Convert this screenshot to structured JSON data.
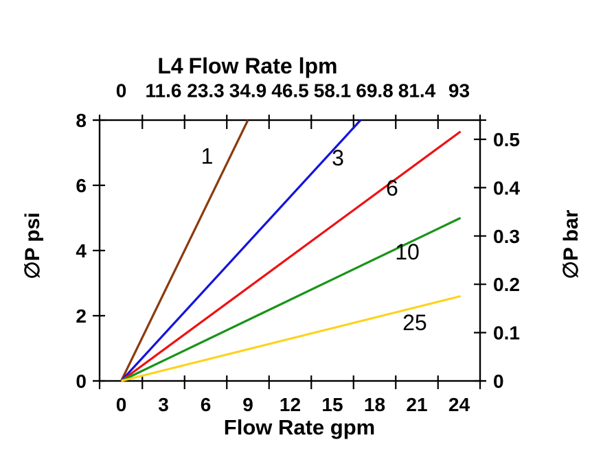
{
  "chart_data": {
    "type": "line",
    "title_prefix": "L4",
    "title_main": "Flow Rate lpm",
    "xlabel_bottom": "Flow Rate gpm",
    "ylabel_left": "∅P psi",
    "ylabel_right": "∅P bar",
    "background": "#ffffff",
    "axis_color": "#000000",
    "x_axis_bottom": {
      "unit": "gpm",
      "tick_labels": [
        "0",
        "3",
        "6",
        "9",
        "12",
        "15",
        "18",
        "21",
        "24"
      ],
      "tick_values": [
        0,
        3,
        6,
        9,
        12,
        15,
        18,
        21,
        24
      ],
      "minor_tick_values": [
        1.5,
        4.5,
        7.5,
        10.5,
        13.5,
        16.5,
        19.5,
        22.5
      ],
      "range": [
        -1.54,
        25.49
      ]
    },
    "x_axis_top": {
      "unit": "lpm",
      "tick_labels": [
        "0",
        "11.6",
        "23.3",
        "34.9",
        "46.5",
        "58.1",
        "69.8",
        "81.4",
        "93"
      ],
      "tick_values_gpm": [
        0,
        3,
        6,
        9,
        12,
        15,
        18,
        21,
        24
      ]
    },
    "y_axis_left": {
      "unit": "psi",
      "tick_labels": [
        "0",
        "2",
        "4",
        "6",
        "8"
      ],
      "tick_values": [
        0,
        2,
        4,
        6,
        8
      ],
      "range": [
        0,
        8
      ]
    },
    "y_axis_right": {
      "unit": "bar",
      "tick_labels": [
        "0",
        "0.1",
        "0.2",
        "0.3",
        "0.4",
        "0.5"
      ],
      "tick_values": [
        0,
        0.1,
        0.2,
        0.3,
        0.4,
        0.5
      ],
      "range": [
        0,
        0.54
      ]
    },
    "series": [
      {
        "label": "1",
        "color": "#8B3A0F",
        "points_gpm_psi": [
          [
            0,
            0
          ],
          [
            9,
            8
          ]
        ],
        "label_pos_gpm_psi": [
          6.1,
          6.9
        ]
      },
      {
        "label": "3",
        "color": "#1414DC",
        "points_gpm_psi": [
          [
            0,
            0
          ],
          [
            17,
            8
          ]
        ],
        "label_pos_gpm_psi": [
          15.39,
          6.84
        ]
      },
      {
        "label": "6",
        "color": "#EE1111",
        "points_gpm_psi": [
          [
            0,
            0
          ],
          [
            24.1,
            7.65
          ]
        ],
        "label_pos_gpm_psi": [
          19.24,
          5.92
        ]
      },
      {
        "label": "10",
        "color": "#189418",
        "points_gpm_psi": [
          [
            0,
            0
          ],
          [
            24.1,
            5.0
          ]
        ],
        "label_pos_gpm_psi": [
          20.32,
          3.96
        ]
      },
      {
        "label": "25",
        "color": "#FFD21E",
        "points_gpm_psi": [
          [
            0,
            0
          ],
          [
            24.1,
            2.6
          ]
        ],
        "label_pos_gpm_psi": [
          20.85,
          1.79
        ]
      }
    ]
  }
}
